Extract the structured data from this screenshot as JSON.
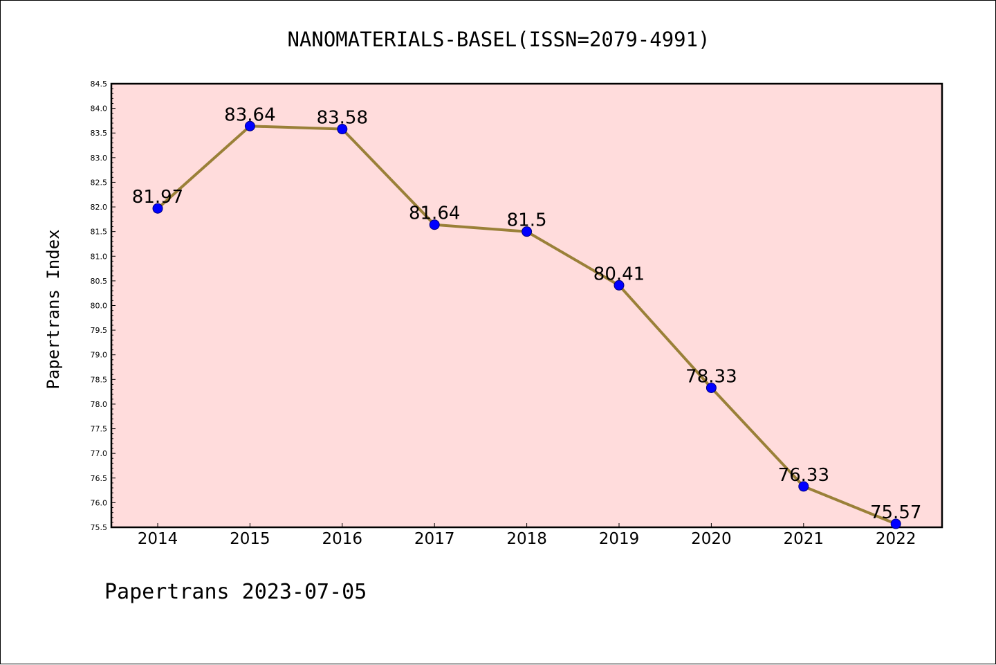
{
  "chart_data": {
    "type": "line",
    "title": "NANOMATERIALS-BASEL(ISSN=2079-4991)",
    "xlabel": "",
    "ylabel": "Papertrans Index",
    "categories": [
      "2014",
      "2015",
      "2016",
      "2017",
      "2018",
      "2019",
      "2020",
      "2021",
      "2022"
    ],
    "series": [
      {
        "values": [
          81.97,
          83.64,
          83.58,
          81.64,
          81.5,
          80.41,
          78.33,
          76.33,
          75.57
        ],
        "labels": [
          "81.97",
          "83.64",
          "83.58",
          "81.64",
          "81.5",
          "80.41",
          "78.33",
          "76.33",
          "75.57"
        ]
      }
    ],
    "ylim": [
      75.5,
      84.5
    ],
    "yticks": [
      "75.5",
      "76.0",
      "76.5",
      "77.0",
      "77.5",
      "78.0",
      "78.5",
      "79.0",
      "79.5",
      "80.0",
      "80.5",
      "81.0",
      "81.5",
      "82.0",
      "82.5",
      "83.0",
      "83.5",
      "84.0",
      "84.5"
    ],
    "grid": false,
    "colors": {
      "plot_background": "#ffdcdc",
      "line": "#9a8038",
      "marker": "#0000ff",
      "marker_edge": "#000080"
    },
    "footer": "Papertrans 2023-07-05"
  }
}
